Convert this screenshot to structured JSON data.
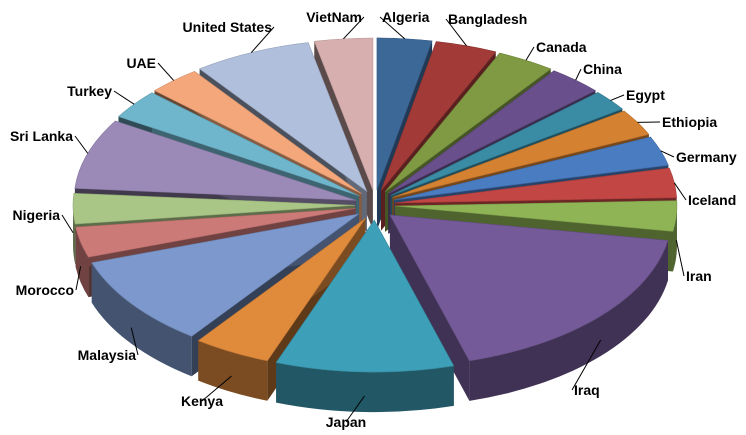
{
  "chart_data": {
    "type": "pie",
    "style": "3d-exploded",
    "title": "",
    "legend": "none",
    "categories": [
      "Algeria",
      "Bangladesh",
      "Canada",
      "China",
      "Egypt",
      "Ethiopia",
      "Germany",
      "Iceland",
      "Iran",
      "Iraq",
      "Japan",
      "Kenya",
      "Malaysia",
      "Morocco",
      "Nigeria",
      "Sri Lanka",
      "Turkey",
      "UAE",
      "United States",
      "VietNam"
    ],
    "values": [
      3.1,
      3.5,
      3.3,
      3.1,
      2.2,
      2.8,
      3.1,
      3.1,
      3.2,
      17.6,
      10.1,
      4.4,
      9.6,
      3.2,
      3.2,
      7.4,
      3.1,
      3.0,
      6.7,
      3.3
    ],
    "colors": [
      "#3c6898",
      "#a23b38",
      "#7f9a43",
      "#69508c",
      "#3a8ca5",
      "#d48131",
      "#4a7cc2",
      "#c24644",
      "#8fb455",
      "#745a98",
      "#3d9fb8",
      "#e08b3c",
      "#7c98cc",
      "#cc7a78",
      "#a9c687",
      "#9b8ab8",
      "#6fb6cc",
      "#f4a77a",
      "#b0bfdc",
      "#d8afaf"
    ]
  }
}
